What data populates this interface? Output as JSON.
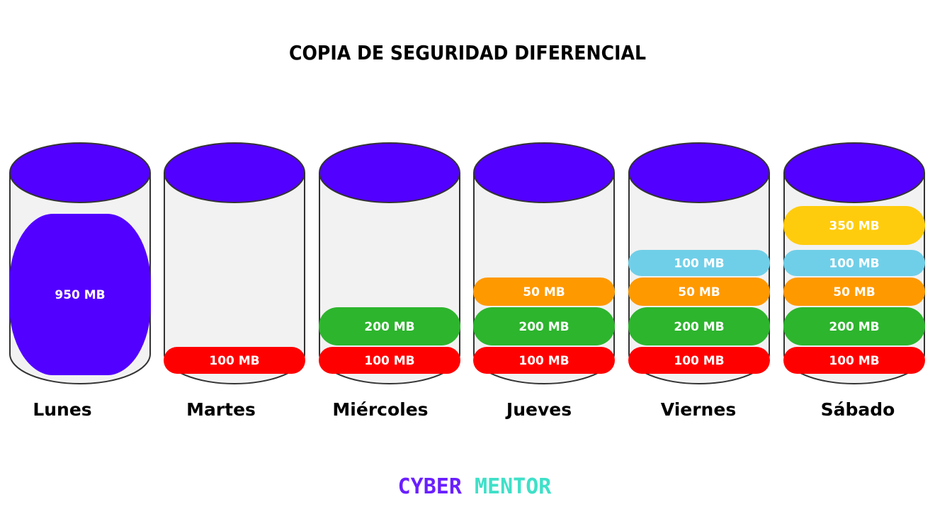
{
  "title": "COPIA DE SEGURIDAD DIFERENCIAL",
  "columns": [
    {
      "label": "Lunes",
      "segments": [
        {
          "label": "950 MB",
          "color": "#5200ff"
        }
      ]
    },
    {
      "label": "Martes",
      "segments": [
        {
          "label": "100 MB",
          "color": "#ff0000"
        }
      ]
    },
    {
      "label": "Miércoles",
      "segments": [
        {
          "label": "100 MB",
          "color": "#ff0000"
        },
        {
          "label": "200 MB",
          "color": "#2db52d"
        }
      ]
    },
    {
      "label": "Jueves",
      "segments": [
        {
          "label": "100 MB",
          "color": "#ff0000"
        },
        {
          "label": "200 MB",
          "color": "#2db52d"
        },
        {
          "label": "50 MB",
          "color": "#ff9900"
        }
      ]
    },
    {
      "label": "Viernes",
      "segments": [
        {
          "label": "100 MB",
          "color": "#ff0000"
        },
        {
          "label": "200 MB",
          "color": "#2db52d"
        },
        {
          "label": "50 MB",
          "color": "#ff9900"
        },
        {
          "label": "100 MB",
          "color": "#70cfe8"
        }
      ]
    },
    {
      "label": "Sábado",
      "segments": [
        {
          "label": "100 MB",
          "color": "#ff0000"
        },
        {
          "label": "200 MB",
          "color": "#2db52d"
        },
        {
          "label": "50 MB",
          "color": "#ff9900"
        },
        {
          "label": "100 MB",
          "color": "#70cfe8"
        },
        {
          "label": "350 MB",
          "color": "#ffcc0d"
        }
      ]
    }
  ],
  "logo": [
    "CYBER",
    "MENTOR"
  ]
}
